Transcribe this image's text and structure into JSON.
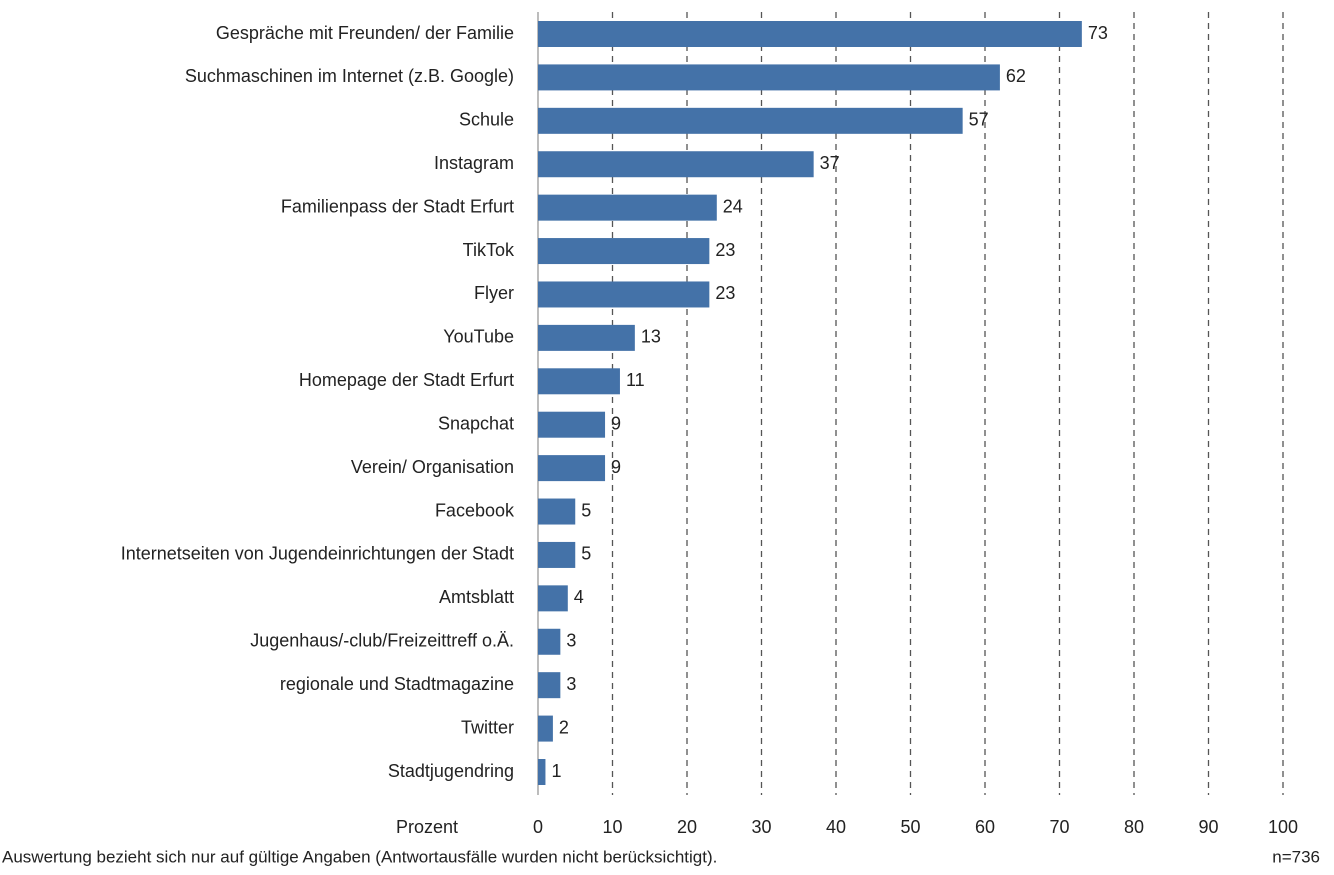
{
  "chart_data": {
    "type": "bar",
    "orientation": "horizontal",
    "categories": [
      "Gespräche mit Freunden/ der Familie",
      "Suchmaschinen im Internet (z.B. Google)",
      "Schule",
      "Instagram",
      "Familienpass der Stadt Erfurt",
      "TikTok",
      "Flyer",
      "YouTube",
      "Homepage der Stadt Erfurt",
      "Snapchat",
      "Verein/ Organisation",
      "Facebook",
      "Internetseiten von Jugendeinrichtungen der Stadt",
      "Amtsblatt",
      "Jugenhaus/-club/Freizeittreff o.Ä.",
      "regionale und Stadtmagazine",
      "Twitter",
      "Stadtjugendring"
    ],
    "values": [
      73,
      62,
      57,
      37,
      24,
      23,
      23,
      13,
      11,
      9,
      9,
      5,
      5,
      4,
      3,
      3,
      2,
      1
    ],
    "color": "#4472a8",
    "xlim": [
      0,
      100
    ],
    "xticks": [
      0,
      10,
      20,
      30,
      40,
      50,
      60,
      70,
      80,
      90,
      100
    ],
    "grid": true,
    "x_label": "Prozent",
    "note": "Auswertung bezieht sich nur auf gültige Angaben (Antwortausfälle wurden nicht berücksichtigt).",
    "sample_size": "n=736"
  }
}
